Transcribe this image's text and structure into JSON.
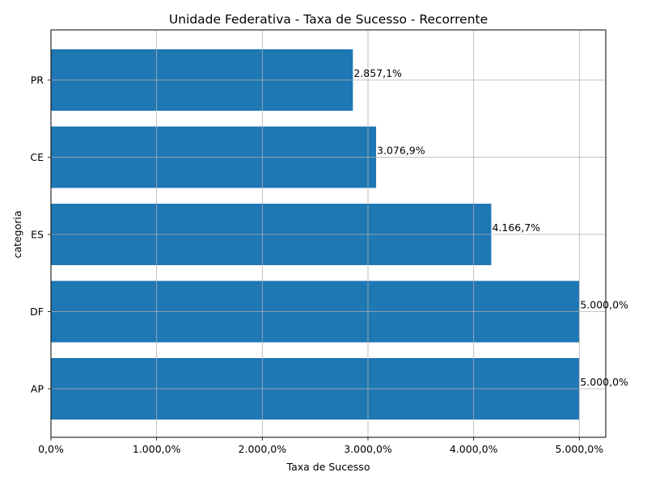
{
  "chart_data": {
    "type": "bar",
    "orientation": "horizontal",
    "title": "Unidade Federativa - Taxa de Sucesso - Recorrente",
    "xlabel": "Taxa de Sucesso",
    "ylabel": "categoria",
    "categories": [
      "AP",
      "DF",
      "ES",
      "CE",
      "PR"
    ],
    "values": [
      5000.0,
      5000.0,
      4166.7,
      3076.9,
      2857.1
    ],
    "data_labels": [
      "5.000,0%",
      "5.000,0%",
      "4.166,7%",
      "3.076,9%",
      "2.857,1%"
    ],
    "xlim": [
      0,
      5250
    ],
    "xticks": [
      0,
      1000,
      2000,
      3000,
      4000,
      5000
    ],
    "xtick_labels": [
      "0,0%",
      "1.000,0%",
      "2.000,0%",
      "3.000,0%",
      "4.000,0%",
      "5.000,0%"
    ],
    "grid": true,
    "bar_color": "#1f77b4"
  }
}
